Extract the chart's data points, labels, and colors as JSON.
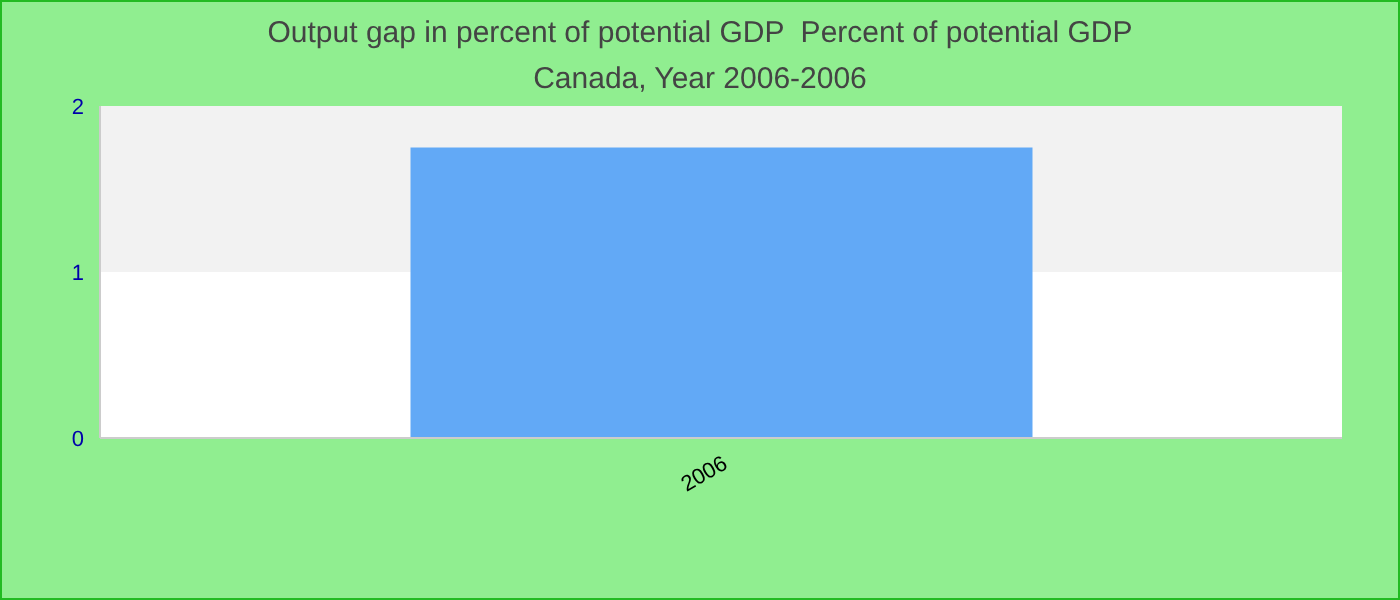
{
  "chart_data": {
    "type": "bar",
    "title": "Output gap in percent of potential GDP  Percent of potential GDP",
    "subtitle": "Canada, Year 2006-2006",
    "categories": [
      "2006"
    ],
    "values": [
      1.75
    ],
    "color": "#62a9f6",
    "ylim": [
      0,
      2
    ],
    "yticks": [
      0,
      1,
      2
    ],
    "bands": [
      {
        "axis": "y",
        "from": 1,
        "to": 2,
        "color": "#f2f2f2"
      }
    ]
  }
}
